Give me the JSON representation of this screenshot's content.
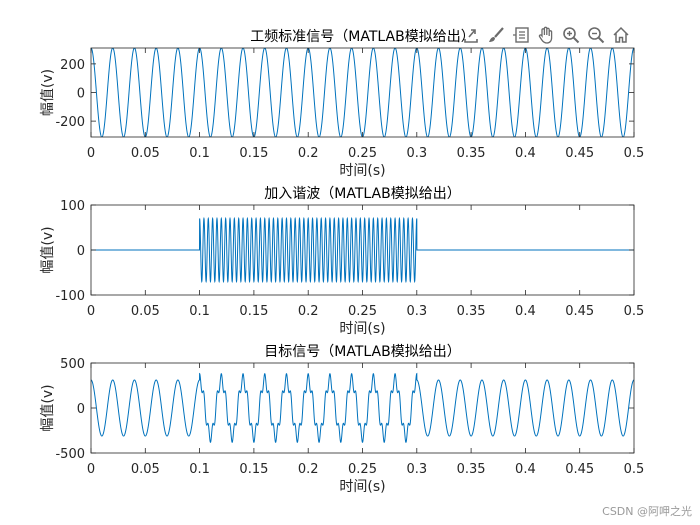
{
  "toolbar": {
    "icons": [
      "export-icon",
      "brush-icon",
      "legend-icon",
      "pan-hand-icon",
      "zoom-in-icon",
      "zoom-out-icon",
      "home-icon"
    ]
  },
  "watermark": "CSDN @阿呷之光",
  "colors": {
    "line": "#0072BD",
    "axes": "#262626",
    "background": "#ffffff"
  },
  "chart_data": [
    {
      "type": "line",
      "title": "工频标准信号（MATLAB模拟给出）",
      "xlabel": "时间(s)",
      "ylabel": "幅值(v)",
      "xlim": [
        0,
        0.5
      ],
      "ylim": [
        -311,
        311
      ],
      "xticks": [
        0,
        0.05,
        0.1,
        0.15,
        0.2,
        0.25,
        0.3,
        0.35,
        0.4,
        0.45,
        0.5
      ],
      "xticklabels": [
        "0",
        "0.05",
        "0.1",
        "0.15",
        "0.2",
        "0.25",
        "0.3",
        "0.35",
        "0.4",
        "0.45",
        "0.5"
      ],
      "yticks": [
        -200,
        0,
        200
      ],
      "yticklabels": [
        "-200",
        "0",
        "200"
      ],
      "grid": false,
      "series": [
        {
          "components": [
            {
              "amplitude": 311,
              "frequency_hz": 50,
              "phase_deg": 90,
              "t_start": 0,
              "t_end": 0.5
            }
          ]
        }
      ]
    },
    {
      "type": "line",
      "title": "加入谐波（MATLAB模拟给出）",
      "xlabel": "时间(s)",
      "ylabel": "幅值(v)",
      "xlim": [
        0,
        0.5
      ],
      "ylim": [
        -100,
        100
      ],
      "xticks": [
        0,
        0.05,
        0.1,
        0.15,
        0.2,
        0.25,
        0.3,
        0.35,
        0.4,
        0.45,
        0.5
      ],
      "xticklabels": [
        "0",
        "0.05",
        "0.1",
        "0.15",
        "0.2",
        "0.25",
        "0.3",
        "0.35",
        "0.4",
        "0.45",
        "0.5"
      ],
      "yticks": [
        -100,
        0,
        100
      ],
      "yticklabels": [
        "-100",
        "0",
        "100"
      ],
      "grid": false,
      "series": [
        {
          "components": [
            {
              "amplitude": 70,
              "frequency_hz": 250,
              "phase_deg": 90,
              "t_start": 0.1,
              "t_end": 0.3
            }
          ]
        }
      ]
    },
    {
      "type": "line",
      "title": "目标信号（MATLAB模拟给出）",
      "xlabel": "时间(s)",
      "ylabel": "幅值(v)",
      "xlim": [
        0,
        0.5
      ],
      "ylim": [
        -500,
        500
      ],
      "xticks": [
        0,
        0.05,
        0.1,
        0.15,
        0.2,
        0.25,
        0.3,
        0.35,
        0.4,
        0.45,
        0.5
      ],
      "xticklabels": [
        "0",
        "0.05",
        "0.1",
        "0.15",
        "0.2",
        "0.25",
        "0.3",
        "0.35",
        "0.4",
        "0.45",
        "0.5"
      ],
      "yticks": [
        -500,
        0,
        500
      ],
      "yticklabels": [
        "-500",
        "0",
        "500"
      ],
      "grid": false,
      "series": [
        {
          "components": [
            {
              "amplitude": 311,
              "frequency_hz": 50,
              "phase_deg": 90,
              "t_start": 0,
              "t_end": 0.5
            },
            {
              "amplitude": 70,
              "frequency_hz": 250,
              "phase_deg": 90,
              "t_start": 0.1,
              "t_end": 0.3
            }
          ]
        }
      ]
    }
  ]
}
